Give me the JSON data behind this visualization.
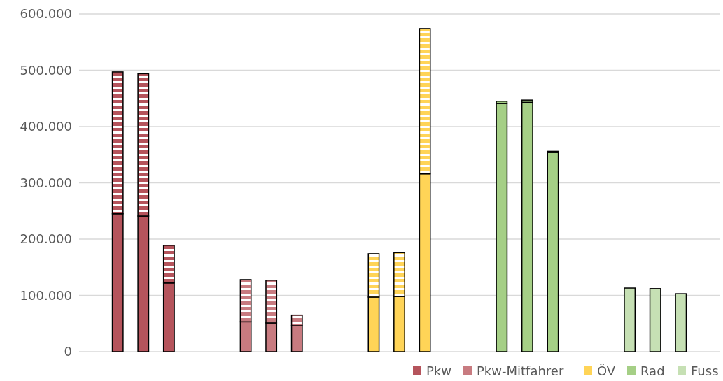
{
  "chart_data": {
    "type": "bar",
    "stacked": true,
    "categories": [
      null,
      null,
      null,
      null,
      null,
      null,
      null,
      null,
      null,
      null,
      null,
      null,
      null,
      null,
      null,
      null,
      null,
      null,
      null,
      null,
      null,
      null,
      null,
      null,
      null
    ],
    "series": [
      {
        "name": "Pkw",
        "color": "#b5545c",
        "values": [
          null,
          245000,
          241000,
          122000,
          null,
          null,
          null,
          null,
          null,
          null,
          null,
          null,
          null,
          null,
          null,
          null,
          null,
          null,
          null,
          null,
          null,
          null,
          null,
          null,
          null
        ]
      },
      {
        "name": "Pkw-Mitfahrer",
        "color": "#c87b80",
        "values": [
          null,
          null,
          null,
          null,
          null,
          null,
          53000,
          51000,
          46000,
          null,
          null,
          null,
          null,
          null,
          null,
          null,
          null,
          null,
          null,
          null,
          null,
          null,
          null,
          null,
          null
        ]
      },
      {
        "name": "ÖV",
        "color": "#ffd457",
        "values": [
          null,
          null,
          null,
          null,
          null,
          null,
          null,
          null,
          null,
          null,
          null,
          97000,
          98000,
          316000,
          null,
          null,
          null,
          null,
          null,
          null,
          null,
          null,
          null,
          null,
          null
        ]
      },
      {
        "name": "Rad",
        "color": "#a5cf86",
        "values": [
          null,
          null,
          null,
          null,
          null,
          null,
          null,
          null,
          null,
          null,
          null,
          null,
          null,
          null,
          null,
          null,
          441000,
          443000,
          354000,
          null,
          null,
          null,
          null,
          null,
          null
        ]
      },
      {
        "name": "Fuss",
        "color": "#c6e0b4",
        "values": [
          null,
          null,
          null,
          null,
          null,
          null,
          null,
          null,
          null,
          null,
          null,
          null,
          null,
          null,
          null,
          null,
          null,
          null,
          null,
          null,
          null,
          113000,
          112000,
          103000,
          null
        ]
      },
      {
        "color": "#b5545c",
        "values": [
          null,
          252000,
          253000,
          67000,
          null,
          null,
          null,
          null,
          null,
          null,
          null,
          null,
          null,
          null,
          null,
          null,
          null,
          null,
          null,
          null,
          null,
          null,
          null,
          null,
          null
        ]
      },
      {
        "color": "#c87b80",
        "values": [
          null,
          null,
          null,
          null,
          null,
          null,
          75000,
          76000,
          19000,
          null,
          null,
          null,
          null,
          null,
          null,
          null,
          null,
          null,
          null,
          null,
          null,
          null,
          null,
          null,
          null
        ]
      },
      {
        "color": "#ffd457",
        "values": [
          null,
          null,
          null,
          null,
          null,
          null,
          null,
          null,
          null,
          null,
          null,
          77000,
          78000,
          258000,
          null,
          null,
          null,
          null,
          null,
          null,
          null,
          null,
          null,
          null,
          null
        ]
      },
      {
        "color": "#a5cf86",
        "values": [
          null,
          null,
          null,
          null,
          null,
          null,
          null,
          null,
          null,
          null,
          null,
          null,
          null,
          null,
          null,
          null,
          4000,
          4000,
          2000,
          null,
          null,
          null,
          null,
          null,
          null
        ]
      }
    ],
    "ylim": [
      0,
      600000
    ],
    "yticks": [
      0,
      {
        "value": 100000,
        "label": "100.000"
      },
      {
        "value": 200000,
        "label": "200.000"
      },
      {
        "value": 300000,
        "label": "300.000"
      },
      {
        "value": 400000,
        "label": "400.000"
      },
      {
        "value": 500000,
        "label": "500.000"
      },
      {
        "value": 600000,
        "label": "600.000"
      }
    ],
    "grid": "y",
    "legend": "bottom right",
    "tick_labels": "y"
  }
}
